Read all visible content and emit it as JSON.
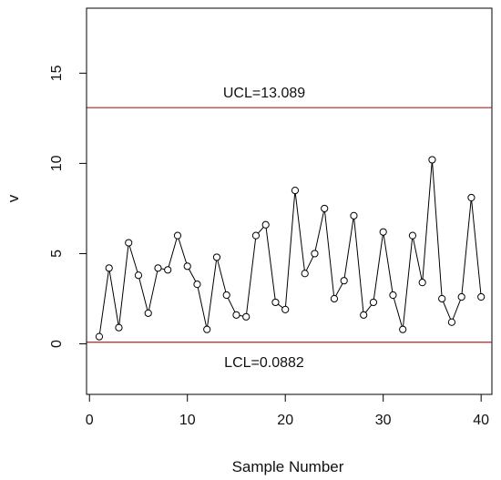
{
  "chart_data": {
    "type": "line",
    "xlabel": "Sample Number",
    "ylabel": "v",
    "xlim": [
      -0.3,
      41.1
    ],
    "ylim": [
      -2.8,
      18.6
    ],
    "x_ticks": [
      0,
      10,
      20,
      30,
      40
    ],
    "y_ticks": [
      0,
      5,
      10,
      15
    ],
    "x_tick_labels": [
      "0",
      "10",
      "20",
      "30",
      "40"
    ],
    "y_tick_labels": [
      "0",
      "5",
      "10",
      "15"
    ],
    "grid": false,
    "series": [
      {
        "x": [
          1,
          2,
          3,
          4,
          5,
          6,
          7,
          8,
          9,
          10,
          11,
          12,
          13,
          14,
          15,
          16,
          17,
          18,
          19,
          20,
          21,
          22,
          23,
          24,
          25,
          26,
          27,
          28,
          29,
          30,
          31,
          32,
          33,
          34,
          35,
          36,
          37,
          38,
          39,
          40
        ],
        "y": [
          0.4,
          4.2,
          0.9,
          5.6,
          3.8,
          1.7,
          4.2,
          4.1,
          6.0,
          4.3,
          3.3,
          0.8,
          4.8,
          2.7,
          1.6,
          1.5,
          6.0,
          6.6,
          2.3,
          1.9,
          8.5,
          3.9,
          5.0,
          7.5,
          2.5,
          3.5,
          7.1,
          1.6,
          2.3,
          6.2,
          2.7,
          0.8,
          6.0,
          3.4,
          10.2,
          2.5,
          1.2,
          2.6,
          8.1,
          2.6
        ],
        "marker": "open-circle",
        "color": "#000000"
      }
    ],
    "limits": [
      {
        "label": "UCL=13.089",
        "value": 13.089,
        "color": "#b22222"
      },
      {
        "label": "LCL=0.0882",
        "value": 0.0882,
        "color": "#b22222"
      }
    ]
  }
}
